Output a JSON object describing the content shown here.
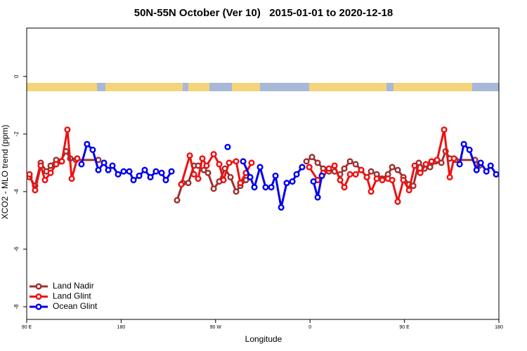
{
  "chart_data": {
    "type": "line",
    "title": "50N-55N October (Ver 10)   2015-01-01 to 2020-12-18",
    "x_label": "Longitude",
    "y_label": "XCO2 - MLO trend (ppm)",
    "xlim": [
      90,
      540
    ],
    "xticks": [
      {
        "value": 90,
        "label": "90 E"
      },
      180,
      {
        "value": 270,
        "label": "90 W"
      },
      {
        "value": 360,
        "label": "0"
      },
      {
        "value": 450,
        "label": "90 E"
      },
      {
        "value": 540,
        "label": "180"
      }
    ],
    "ylim": [
      -8.44,
      1.68
    ],
    "yticks": [
      0,
      -2,
      -4,
      -6,
      -8
    ],
    "legend": "bottom-left",
    "series": [
      {
        "name": "Land Nadir",
        "color": "#a03030",
        "x": [
          92.7,
          98,
          103.4,
          108.8,
          112.8,
          118.1,
          122.1,
          127.5,
          131.5,
          136.9,
          158.3,
          null,
          233.3,
          238.7,
          244,
          249.4,
          253.4,
          258.8,
          262.8,
          268.2,
          273.5,
          278.9,
          284.2,
          289.6,
          293.6,
          298.9,
          null,
          356.6,
          361.9,
          367.3,
          372.6,
          378,
          383.4,
          388.7,
          392.7,
          398.1,
          403.5,
          408.8,
          414.2,
          418.2,
          423.6,
          428.9,
          434.3,
          438.3,
          443.6,
          449,
          454.4,
          458.4,
          463.7,
          469.1,
          474.4,
          479.8,
          485.2,
          489.2,
          493.2,
          498.6,
          517.3,
          521.3
        ],
        "values": [
          -3.5,
          -3.8,
          -3.0,
          -3.3,
          -3.1,
          -2.9,
          -2.95,
          -2.6,
          -2.85,
          -2.9,
          -2.9,
          null,
          -4.3,
          -3.7,
          -3.7,
          -3.1,
          -3.1,
          -3.25,
          -3.35,
          -3.9,
          -3.65,
          -3.2,
          -3.5,
          -4.0,
          -3.8,
          -3.6,
          null,
          -2.95,
          -2.8,
          -3.0,
          -3.2,
          -3.3,
          -3.3,
          -3.4,
          -3.2,
          -2.95,
          -3.05,
          -3.25,
          -3.5,
          -3.3,
          -3.4,
          -3.55,
          -3.4,
          -3.15,
          -3.25,
          -3.5,
          -3.75,
          -3.8,
          -3.0,
          -3.2,
          -3.15,
          -2.95,
          -3.0,
          -2.6,
          -2.85,
          -2.9,
          -2.9,
          -3.1
        ]
      },
      {
        "name": "Land Glint",
        "color": "#ee1111",
        "x": [
          92.7,
          98,
          103.4,
          107.4,
          112.8,
          118.1,
          123.5,
          128.8,
          132.9,
          138.2,
          null,
          237.3,
          245.4,
          249.4,
          253.4,
          257.4,
          261.4,
          268.2,
          273.5,
          277.5,
          282.9,
          289.6,
          293.6,
          298.9,
          304.3,
          null,
          359.3,
          367.3,
          372.6,
          378,
          383.4,
          388.7,
          392.7,
          398.1,
          403.5,
          408.8,
          414.2,
          418.2,
          423.6,
          428.9,
          434.3,
          438.3,
          443.6,
          449,
          454.4,
          459.7,
          465.1,
          470.4,
          475.8,
          481.1,
          487.8,
          493.2,
          497.2
        ],
        "values": [
          -3.4,
          -3.95,
          -3.1,
          -3.6,
          -3.35,
          -3.05,
          -2.95,
          -1.85,
          -3.55,
          -2.85,
          null,
          -3.75,
          -2.75,
          -3.4,
          -3.55,
          -2.85,
          -3.1,
          -2.7,
          -3.05,
          -3.6,
          -3.0,
          -2.95,
          -3.7,
          -3.35,
          -3.0,
          null,
          -3.15,
          -3.6,
          -3.35,
          -3.2,
          -3.1,
          -3.6,
          -3.85,
          -3.4,
          -3.4,
          -3.25,
          -3.5,
          -4.0,
          -3.55,
          -3.6,
          -3.55,
          -3.6,
          -4.35,
          -3.6,
          -3.95,
          -3.1,
          -3.35,
          -3.05,
          -2.95,
          -2.9,
          -1.85,
          -3.5,
          -2.85
        ]
      },
      {
        "name": "Ocean Glint",
        "color": "#0000ee",
        "x": [
          142.2,
          147.5,
          152.9,
          158.3,
          163.7,
          167.7,
          171.7,
          177.1,
          182.4,
          187.8,
          191.8,
          197.2,
          202.5,
          207.9,
          213.2,
          218.6,
          222.6,
          228,
          null,
          281.5,
          null,
          296.3,
          303,
          307,
          312.4,
          317.7,
          323.1,
          327.1,
          332.5,
          337.8,
          343.2,
          347.2,
          352.5,
          null,
          363.3,
          367.3,
          371.3,
          null,
          502.6,
          506.6,
          512,
          518.7,
          522.7,
          528.1,
          532.1,
          537.4
        ],
        "values": [
          -3.05,
          -2.35,
          -2.55,
          -3.25,
          -3.0,
          -3.25,
          -3.1,
          -3.4,
          -3.3,
          -3.3,
          -3.6,
          -3.45,
          -3.25,
          -3.5,
          -3.3,
          -3.35,
          -3.6,
          -3.3,
          null,
          -2.45,
          null,
          -2.95,
          -3.5,
          -3.85,
          -3.15,
          -3.85,
          -3.85,
          -3.45,
          -4.55,
          -3.7,
          -3.65,
          -3.4,
          -3.15,
          null,
          -3.65,
          -4.2,
          -3.45,
          null,
          -3.05,
          -2.35,
          -2.55,
          -3.25,
          -3.0,
          -3.3,
          -3.1,
          -3.4
        ]
      }
    ]
  }
}
